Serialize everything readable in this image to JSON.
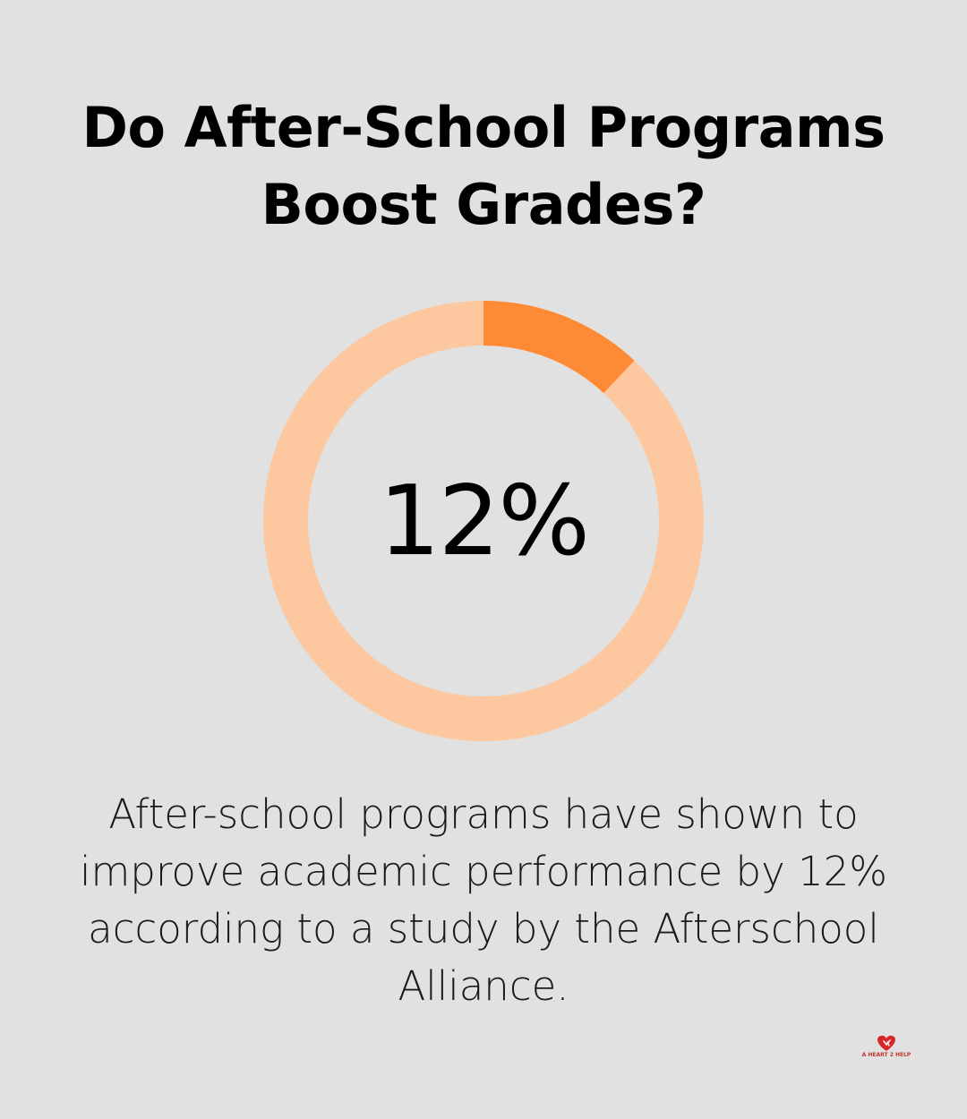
{
  "title": "Do After-School Programs Boost Grades?",
  "description": "After-school programs have shown to improve academic performance by 12% according to a study by the Afterschool Alliance.",
  "chart_data": {
    "type": "pie",
    "variant": "donut",
    "center_label": "12%",
    "value_percent": 12,
    "remainder_percent": 88,
    "colors": {
      "value": "#ff8a35",
      "remainder": "#fdc8a0"
    }
  },
  "logo": {
    "icon": "heart-hands-icon",
    "text": "A HEART 2 HELP",
    "color": "#d9262b"
  }
}
